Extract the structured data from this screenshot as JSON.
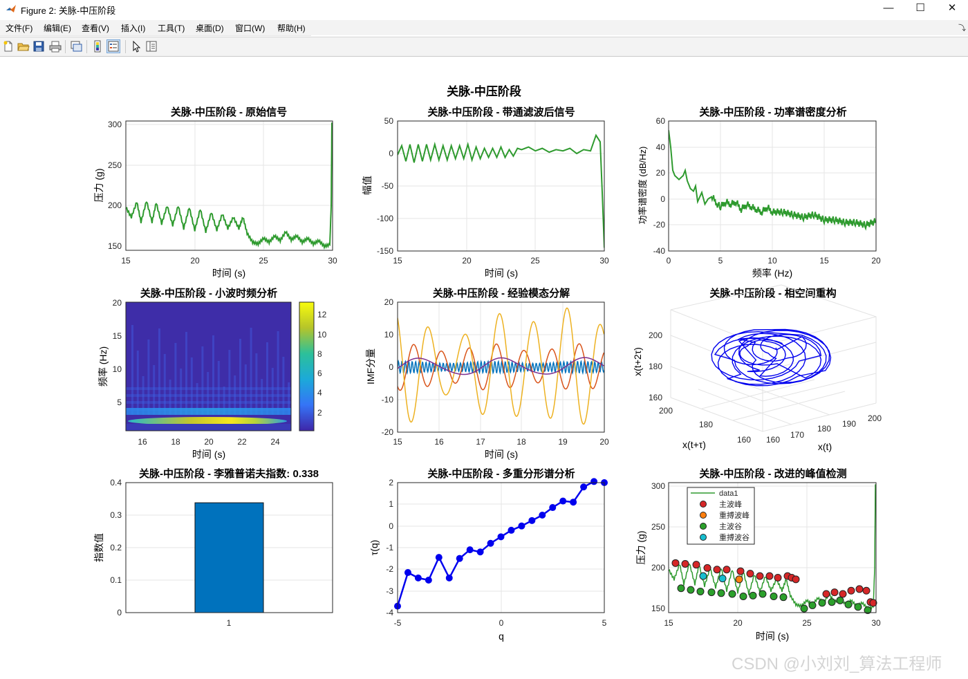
{
  "window": {
    "title": "Figure 2: 关脉-中压阶段"
  },
  "menu": {
    "items": [
      "文件(F)",
      "编辑(E)",
      "查看(V)",
      "插入(I)",
      "工具(T)",
      "桌面(D)",
      "窗口(W)",
      "帮助(H)"
    ]
  },
  "toolbar": {
    "icons": [
      "new-file-icon",
      "open-folder-icon",
      "save-icon",
      "print-icon",
      "link-plot-icon",
      "insert-colorbar-icon",
      "insert-legend-icon",
      "edit-plot-cursor-icon",
      "property-inspector-icon"
    ]
  },
  "figure": {
    "suptitle": "关脉-中压阶段"
  },
  "subplots": {
    "raw": {
      "title": "关脉-中压阶段 - 原始信号",
      "xlabel": "时间 (s)",
      "ylabel": "压力 (g)",
      "xticks": [
        "15",
        "20",
        "25",
        "30"
      ],
      "yticks": [
        "150",
        "200",
        "250",
        "300"
      ]
    },
    "bandpass": {
      "title": "关脉-中压阶段 - 带通滤波后信号",
      "xlabel": "时间 (s)",
      "ylabel": "幅值",
      "xticks": [
        "15",
        "20",
        "25",
        "30"
      ],
      "yticks": [
        "-150",
        "-100",
        "-50",
        "0",
        "50"
      ]
    },
    "psd": {
      "title": "关脉-中压阶段 - 功率谱密度分析",
      "xlabel": "频率 (Hz)",
      "ylabel": "功率谱密度 (dB/Hz)",
      "xticks": [
        "0",
        "5",
        "10",
        "15",
        "20"
      ],
      "yticks": [
        "-40",
        "-20",
        "0",
        "20",
        "40",
        "60"
      ]
    },
    "wavelet": {
      "title": "关脉-中压阶段 - 小波时频分析",
      "xlabel": "时间 (s)",
      "ylabel": "频率 (Hz)",
      "xticks": [
        "16",
        "18",
        "20",
        "22",
        "24"
      ],
      "yticks": [
        "5",
        "10",
        "15",
        "20"
      ],
      "colorbar_ticks": [
        "2",
        "4",
        "6",
        "8",
        "10",
        "12"
      ]
    },
    "emd": {
      "title": "关脉-中压阶段 - 经验模态分解",
      "xlabel": "时间 (s)",
      "ylabel": "IMF分量",
      "xticks": [
        "15",
        "16",
        "17",
        "18",
        "19",
        "20"
      ],
      "yticks": [
        "-20",
        "-10",
        "0",
        "10",
        "20"
      ]
    },
    "phase": {
      "title": "关脉-中压阶段 - 相空间重构",
      "xlabel": "x(t)",
      "ylabel": "x(t+τ)",
      "zlabel": "x(t+2τ)",
      "xticks": [
        "160",
        "170",
        "180",
        "190",
        "200"
      ],
      "yticks": [
        "160",
        "180",
        "200"
      ],
      "zticks": [
        "160",
        "180",
        "200"
      ]
    },
    "lyapunov": {
      "title": "关脉-中压阶段 - 李雅普诺夫指数: 0.338",
      "ylabel": "指数值",
      "xticks": [
        "1"
      ],
      "yticks": [
        "0",
        "0.1",
        "0.2",
        "0.3",
        "0.4"
      ]
    },
    "multifractal": {
      "title": "关脉-中压阶段 - 多重分形谱分析",
      "xlabel": "q",
      "ylabel": "τ(q)",
      "xticks": [
        "-5",
        "0",
        "5"
      ],
      "yticks": [
        "-4",
        "-3",
        "-2",
        "-1",
        "0",
        "1",
        "2"
      ]
    },
    "peaks": {
      "title": "关脉-中压阶段 - 改进的峰值检测",
      "xlabel": "时间 (s)",
      "ylabel": "压力 (g)",
      "xticks": [
        "15",
        "20",
        "25",
        "30"
      ],
      "yticks": [
        "150",
        "200",
        "250",
        "300"
      ],
      "legend": [
        "data1",
        "主波峰",
        "重搏波峰",
        "主波谷",
        "重搏波谷"
      ]
    }
  },
  "colors": {
    "green_line": "#2e9a2e",
    "blue_line": "#0000ee",
    "bar": "#0072bd",
    "imf": [
      "#0072bd",
      "#d95319",
      "#edb120",
      "#7e2f8e"
    ],
    "main_peak": "#d62728",
    "dicrotic_peak": "#ff7f0e",
    "main_valley": "#2ca02c",
    "dicrotic_valley": "#17becf"
  },
  "chart_data": [
    {
      "type": "line",
      "title": "关脉-中压阶段 - 原始信号",
      "xlabel": "时间 (s)",
      "ylabel": "压力 (g)",
      "xlim": [
        15,
        30
      ],
      "ylim": [
        145,
        305
      ],
      "series": [
        {
          "x": [
            15,
            15.4,
            15.8,
            16.1,
            16.5,
            16.9,
            17.2,
            17.6,
            18,
            18.4,
            18.8,
            19.2,
            19.6,
            20,
            20.4,
            20.8,
            21.2,
            21.6,
            22,
            22.4,
            22.8,
            23.2,
            23.5,
            23.8,
            24.2,
            24.6,
            25,
            25.4,
            25.8,
            26.2,
            26.6,
            27,
            27.4,
            27.8,
            28.2,
            28.6,
            29,
            29.4,
            29.8,
            29.9,
            29.95
          ],
          "y": [
            198,
            186,
            205,
            180,
            206,
            180,
            204,
            178,
            200,
            176,
            200,
            172,
            198,
            170,
            196,
            168,
            192,
            170,
            190,
            172,
            186,
            172,
            186,
            166,
            155,
            153,
            160,
            155,
            163,
            157,
            168,
            158,
            163,
            155,
            160,
            153,
            157,
            150,
            152,
            200,
            303
          ]
        }
      ]
    },
    {
      "type": "line",
      "title": "关脉-中压阶段 - 带通滤波后信号",
      "xlabel": "时间 (s)",
      "ylabel": "幅值",
      "xlim": [
        15,
        30
      ],
      "ylim": [
        -150,
        50
      ],
      "series": [
        {
          "x": [
            15,
            15.3,
            15.6,
            15.9,
            16.2,
            16.5,
            16.8,
            17.1,
            17.4,
            17.7,
            18,
            18.3,
            18.6,
            18.9,
            19.2,
            19.5,
            19.8,
            20.1,
            20.4,
            20.7,
            21,
            21.3,
            21.6,
            21.9,
            22.2,
            22.5,
            22.8,
            23.1,
            23.4,
            23.7,
            24,
            24.5,
            25,
            25.5,
            26,
            26.5,
            27,
            27.5,
            28,
            28.5,
            29,
            29.4,
            29.7,
            29.85,
            30
          ],
          "y": [
            -2,
            12,
            -12,
            14,
            -14,
            14,
            -12,
            14,
            -10,
            14,
            -10,
            12,
            -10,
            12,
            -8,
            12,
            -8,
            14,
            -10,
            10,
            -8,
            8,
            -6,
            8,
            -6,
            10,
            -6,
            6,
            -4,
            8,
            6,
            10,
            4,
            8,
            2,
            6,
            4,
            8,
            0,
            6,
            4,
            28,
            18,
            -60,
            -145
          ]
        }
      ]
    },
    {
      "type": "line",
      "title": "关脉-中压阶段 - 功率谱密度分析",
      "xlabel": "频率 (Hz)",
      "ylabel": "功率谱密度 (dB/Hz)",
      "xlim": [
        0,
        20
      ],
      "ylim": [
        -40,
        60
      ],
      "series": [
        {
          "x": [
            0,
            0.2,
            0.4,
            0.6,
            1,
            1.4,
            1.6,
            1.8,
            2.1,
            2.4,
            2.6,
            2.8,
            3.2,
            3.5,
            3.8,
            4.2,
            4.7,
            5,
            5.5,
            6,
            6.5,
            7,
            7.5,
            8,
            8.5,
            9,
            9.5,
            10,
            11,
            12,
            13,
            14,
            15,
            16,
            17,
            18,
            19,
            20
          ],
          "y": [
            53,
            40,
            22,
            18,
            15,
            18,
            22,
            14,
            8,
            6,
            10,
            -2,
            5,
            -4,
            0,
            2,
            -4,
            -6,
            -2,
            -4,
            -2,
            -8,
            -4,
            -6,
            -8,
            -10,
            -6,
            -10,
            -10,
            -12,
            -14,
            -12,
            -16,
            -16,
            -18,
            -18,
            -20,
            -17
          ]
        }
      ]
    },
    {
      "type": "heatmap",
      "title": "关脉-中压阶段 - 小波时频分析",
      "xlabel": "时间 (s)",
      "ylabel": "频率 (Hz)",
      "xlim": [
        15,
        25
      ],
      "ylim": [
        0.5,
        20
      ],
      "clim": [
        1,
        13
      ],
      "series": [
        {
          "name": "energy band",
          "y": 1.5,
          "peak": 12
        }
      ]
    },
    {
      "type": "line",
      "title": "关脉-中压阶段 - 经验模态分解",
      "xlabel": "时间 (s)",
      "ylabel": "IMF分量",
      "xlim": [
        15,
        20
      ],
      "ylim": [
        -20,
        20
      ],
      "series": [
        {
          "amp": 1.5,
          "freq": 12
        },
        {
          "amp": 6,
          "freq": 1.5
        },
        {
          "amp": 14,
          "freq": 1.2
        },
        {
          "amp": 2.5,
          "freq": 0.5
        }
      ]
    },
    {
      "type": "scatter",
      "title": "关脉-中压阶段 - 相空间重构",
      "xlabel": "x(t)",
      "ylabel": "x(t+τ)",
      "zlabel": "x(t+2τ)",
      "xlim": [
        155,
        205
      ],
      "ylim": [
        155,
        205
      ],
      "zlim": [
        155,
        205
      ]
    },
    {
      "type": "bar",
      "title": "关脉-中压阶段 - 李雅普诺夫指数: 0.338",
      "categories": [
        "1"
      ],
      "values": [
        0.338
      ],
      "ylabel": "指数值",
      "ylim": [
        0,
        0.4
      ]
    },
    {
      "type": "line",
      "title": "关脉-中压阶段 - 多重分形谱分析",
      "xlabel": "q",
      "ylabel": "τ(q)",
      "xlim": [
        -5,
        5
      ],
      "ylim": [
        -4,
        2
      ],
      "series": [
        {
          "x": [
            -5,
            -4.5,
            -4,
            -3.5,
            -3,
            -2.5,
            -2,
            -1.5,
            -1,
            -0.5,
            0,
            0.5,
            1,
            1.5,
            2,
            2.5,
            3,
            3.5,
            4,
            4.5,
            5
          ],
          "y": [
            -3.7,
            -2.15,
            -2.4,
            -2.5,
            -1.45,
            -2.4,
            -1.5,
            -1.1,
            -1.2,
            -0.8,
            -0.5,
            -0.2,
            0,
            0.25,
            0.5,
            0.85,
            1.15,
            1.1,
            1.8,
            2.05,
            2
          ]
        }
      ]
    },
    {
      "type": "scatter",
      "title": "关脉-中压阶段 - 改进的峰值检测",
      "xlabel": "时间 (s)",
      "ylabel": "压力 (g)",
      "xlim": [
        15,
        30
      ],
      "ylim": [
        145,
        305
      ],
      "series": [
        {
          "name": "主波峰",
          "x": [
            15.5,
            16.2,
            17,
            17.8,
            18.5,
            19.2,
            20.2,
            20.9,
            21.6,
            22.3,
            22.9,
            23.6,
            23.9,
            24.2,
            26.4,
            27,
            27.6,
            28.2,
            28.8,
            29.3,
            29.6,
            29.8
          ],
          "y": [
            206,
            205,
            204,
            200,
            198,
            198,
            196,
            193,
            190,
            190,
            188,
            190,
            188,
            186,
            168,
            170,
            168,
            172,
            174,
            172,
            158,
            157
          ]
        },
        {
          "name": "重搏波峰",
          "x": [
            20.1
          ],
          "y": [
            186
          ]
        },
        {
          "name": "主波谷",
          "x": [
            15.9,
            16.6,
            17.3,
            18.1,
            18.8,
            19.6,
            20.4,
            21.1,
            21.8,
            22.6,
            23.3,
            24.8,
            25.4,
            26.1,
            26.8,
            27.4,
            28,
            28.7,
            29.4
          ],
          "y": [
            175,
            173,
            171,
            170,
            169,
            168,
            165,
            166,
            168,
            165,
            164,
            150,
            154,
            157,
            158,
            160,
            155,
            152,
            148
          ]
        },
        {
          "name": "重搏波谷",
          "x": [
            17.5,
            18.9
          ],
          "y": [
            190,
            187
          ]
        }
      ]
    }
  ]
}
